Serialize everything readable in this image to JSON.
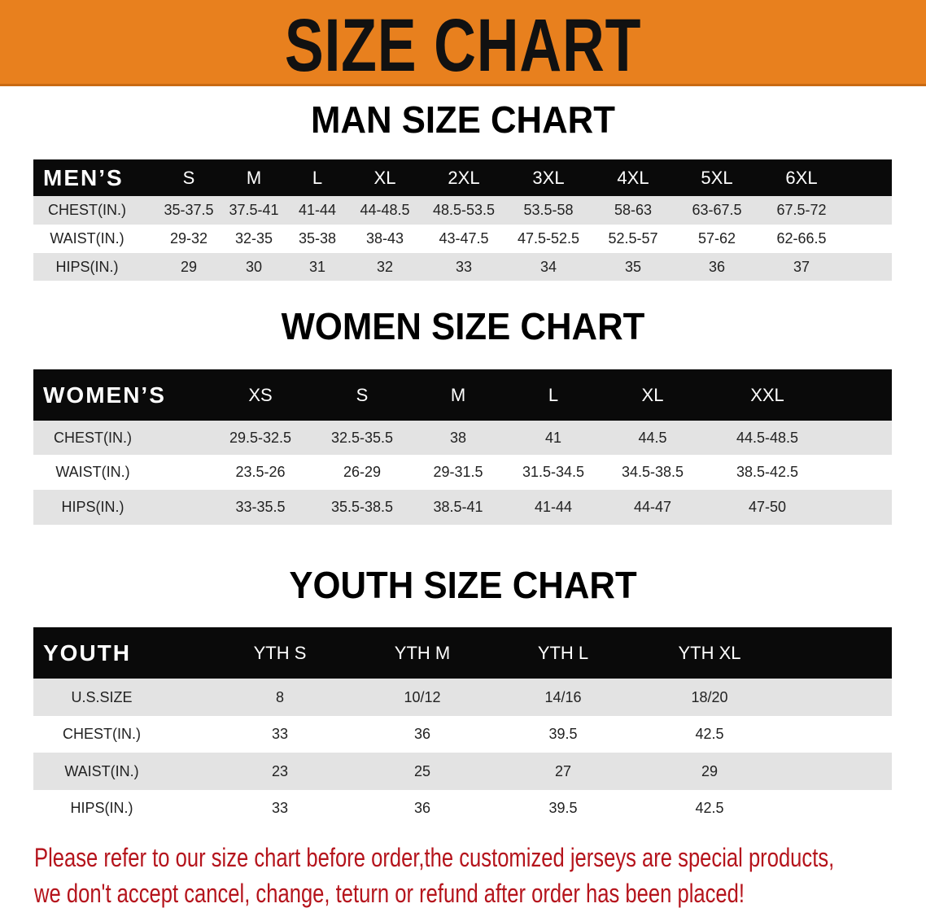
{
  "banner": {
    "title": "SIZE CHART",
    "color": "#e8801e"
  },
  "men": {
    "title": "MAN SIZE CHART",
    "header": [
      "MEN’S",
      "S",
      "M",
      "L",
      "XL",
      "2XL",
      "3XL",
      "4XL",
      "5XL",
      "6XL"
    ],
    "rows": [
      [
        "CHEST(IN.)",
        "35-37.5",
        "37.5-41",
        "41-44",
        "44-48.5",
        "48.5-53.5",
        "53.5-58",
        "58-63",
        "63-67.5",
        "67.5-72"
      ],
      [
        "WAIST(IN.)",
        "29-32",
        "32-35",
        "35-38",
        "38-43",
        "43-47.5",
        "47.5-52.5",
        "52.5-57",
        "57-62",
        "62-66.5"
      ],
      [
        "HIPS(IN.)",
        "29",
        "30",
        "31",
        "32",
        "33",
        "34",
        "35",
        "36",
        "37"
      ]
    ]
  },
  "women": {
    "title": "WOMEN SIZE CHART",
    "header": [
      "WOMEN’S",
      "XS",
      "S",
      "M",
      "L",
      "XL",
      "XXL"
    ],
    "rows": [
      [
        "CHEST(IN.)",
        "29.5-32.5",
        "32.5-35.5",
        "38",
        "41",
        "44.5",
        "44.5-48.5"
      ],
      [
        "WAIST(IN.)",
        "23.5-26",
        "26-29",
        "29-31.5",
        "31.5-34.5",
        "34.5-38.5",
        "38.5-42.5"
      ],
      [
        "HIPS(IN.)",
        "33-35.5",
        "35.5-38.5",
        "38.5-41",
        "41-44",
        "44-47",
        "47-50"
      ]
    ]
  },
  "youth": {
    "title": "YOUTH SIZE CHART",
    "header": [
      "YOUTH",
      "YTH S",
      "YTH M",
      "YTH L",
      "YTH XL"
    ],
    "rows": [
      [
        "U.S.SIZE",
        "8",
        "10/12",
        "14/16",
        "18/20"
      ],
      [
        "CHEST(IN.)",
        "33",
        "36",
        "39.5",
        "42.5"
      ],
      [
        "WAIST(IN.)",
        "23",
        "25",
        "27",
        "29"
      ],
      [
        "HIPS(IN.)",
        "33",
        "36",
        "39.5",
        "42.5"
      ]
    ]
  },
  "note": {
    "line1": "Please refer to our size chart before order,the customized jerseys are special products,",
    "line2": "we don't accept cancel, change, teturn or refund after order has been placed!",
    "color": "#b5141c"
  }
}
